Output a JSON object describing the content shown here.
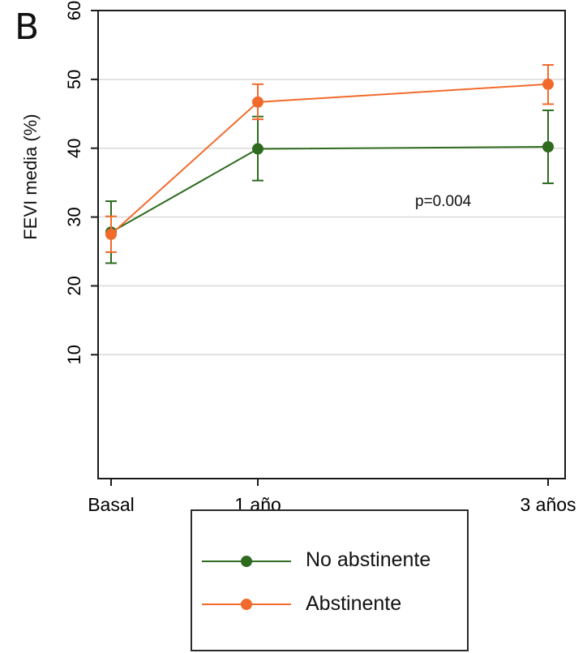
{
  "panel_label": "B",
  "colors": {
    "series": [
      "#2e6b1f",
      "#f26a2b"
    ],
    "grid": "#d9d9d9",
    "axis": "#1a1a1a"
  },
  "chart_data": {
    "type": "line",
    "categories": [
      "Basal",
      "1 año",
      "3 años"
    ],
    "ylabel": "FEVI media (%)",
    "xlabel": "",
    "title": "",
    "ylim": [
      -8,
      60
    ],
    "yticks": [
      10,
      20,
      30,
      40,
      50,
      60
    ],
    "grid": true,
    "legend_position": "bottom",
    "annotation": "p=0.004",
    "series": [
      {
        "name": "No abstinente",
        "values": [
          27.8,
          39.9,
          40.2
        ],
        "lower": [
          23.3,
          35.3,
          34.9
        ],
        "upper": [
          32.3,
          44.6,
          45.5
        ]
      },
      {
        "name": "Abstinente",
        "values": [
          27.5,
          46.7,
          49.3
        ],
        "lower": [
          24.9,
          44.2,
          46.4
        ],
        "upper": [
          30.1,
          49.3,
          52.1
        ]
      }
    ]
  }
}
